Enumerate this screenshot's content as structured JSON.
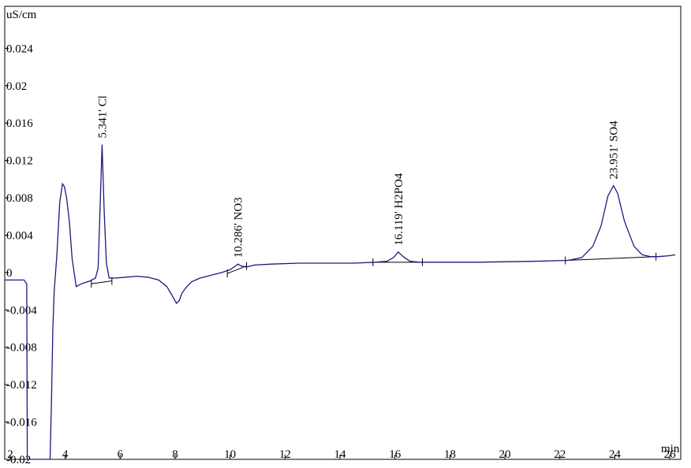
{
  "chart_data": {
    "type": "line",
    "title": "",
    "y_unit": "uS/cm",
    "x_unit": "min",
    "xlim": [
      1.8,
      26.4
    ],
    "ylim": [
      -0.02,
      0.0285
    ],
    "x_ticks": [
      {
        "value": 2,
        "label": "2"
      },
      {
        "value": 4,
        "label": "4"
      },
      {
        "value": 6,
        "label": "6"
      },
      {
        "value": 8,
        "label": "8"
      },
      {
        "value": 10,
        "label": "10"
      },
      {
        "value": 12,
        "label": "12"
      },
      {
        "value": 14,
        "label": "14"
      },
      {
        "value": 16,
        "label": "16"
      },
      {
        "value": 18,
        "label": "18"
      },
      {
        "value": 20,
        "label": "20"
      },
      {
        "value": 22,
        "label": "22"
      },
      {
        "value": 24,
        "label": "24"
      },
      {
        "value": 26,
        "label": "26"
      }
    ],
    "y_ticks": [
      {
        "value": 0.024,
        "label": "0.024"
      },
      {
        "value": 0.02,
        "label": "0.02"
      },
      {
        "value": 0.016,
        "label": "0.016"
      },
      {
        "value": 0.012,
        "label": "0.012"
      },
      {
        "value": 0.008,
        "label": "0.008"
      },
      {
        "value": 0.004,
        "label": "0.004"
      },
      {
        "value": 0,
        "label": "0"
      },
      {
        "value": -0.004,
        "label": "-0.004"
      },
      {
        "value": -0.008,
        "label": "-0.008"
      },
      {
        "value": -0.012,
        "label": "-0.012"
      },
      {
        "value": -0.016,
        "label": "-0.016"
      },
      {
        "value": -0.02,
        "label": "-0.02"
      }
    ],
    "grid": false,
    "line_color": "#1a1a80",
    "baseline_color": "#000000",
    "series": [
      {
        "x": [
          1.8,
          2.2,
          2.5,
          2.6,
          2.62,
          2.7,
          3.3,
          3.45,
          3.5,
          3.55,
          3.6,
          3.7,
          3.8,
          3.9,
          3.97,
          4.05,
          4.15,
          4.25,
          4.4,
          4.6,
          4.9,
          5.1,
          5.2,
          5.27,
          5.341,
          5.42,
          5.5,
          5.6,
          5.8,
          6.2,
          6.6,
          7.0,
          7.4,
          7.7,
          7.9,
          8.05,
          8.15,
          8.25,
          8.4,
          8.6,
          8.9,
          9.3,
          9.7,
          10.0,
          10.2,
          10.286,
          10.4,
          10.6,
          10.9,
          11.5,
          12.5,
          13.5,
          14.5,
          15.3,
          15.7,
          15.95,
          16.119,
          16.3,
          16.55,
          16.9,
          17.5,
          19.0,
          21.0,
          22.3,
          22.8,
          23.2,
          23.5,
          23.75,
          23.951,
          24.1,
          24.35,
          24.7,
          25.0,
          25.3,
          25.6,
          26.0,
          26.2
        ],
        "y": [
          -0.0008,
          -0.0008,
          -0.0008,
          -0.0012,
          -0.02,
          -0.03,
          -0.03,
          -0.02,
          -0.014,
          -0.006,
          -0.002,
          0.002,
          0.0075,
          0.0095,
          0.0092,
          0.008,
          0.0055,
          0.0015,
          -0.0015,
          -0.0012,
          -0.0009,
          -0.0006,
          0.0005,
          0.007,
          0.0137,
          0.0065,
          0.001,
          -0.0006,
          -0.0006,
          -0.0005,
          -0.0004,
          -0.0005,
          -0.0008,
          -0.0015,
          -0.0025,
          -0.0033,
          -0.003,
          -0.0022,
          -0.0016,
          -0.001,
          -0.0006,
          -0.0003,
          0.0,
          0.0003,
          0.0007,
          0.0009,
          0.0007,
          0.0006,
          0.0008,
          0.0009,
          0.001,
          0.001,
          0.001,
          0.0011,
          0.0012,
          0.0016,
          0.0022,
          0.0017,
          0.0012,
          0.0011,
          0.0011,
          0.0011,
          0.0012,
          0.0013,
          0.0016,
          0.0028,
          0.005,
          0.0082,
          0.0093,
          0.0085,
          0.0055,
          0.0028,
          0.0019,
          0.0017,
          0.0017,
          0.0018,
          0.0019
        ]
      }
    ],
    "baselines": [
      {
        "x": [
          4.95,
          5.7
        ],
        "y": [
          -0.0012,
          -0.0009
        ]
      },
      {
        "x": [
          9.9,
          10.6
        ],
        "y": [
          -0.0001,
          0.0007
        ]
      },
      {
        "x": [
          15.2,
          17.0
        ],
        "y": [
          0.0011,
          0.0011
        ]
      },
      {
        "x": [
          22.2,
          25.5
        ],
        "y": [
          0.0013,
          0.0017
        ]
      }
    ],
    "peaks": [
      {
        "x": 5.341,
        "y": 0.0137,
        "label": "5.341' Cl"
      },
      {
        "x": 10.286,
        "y": 0.0009,
        "label": "10.286' NO3"
      },
      {
        "x": 16.119,
        "y": 0.0022,
        "label": "16.119' H2PO4"
      },
      {
        "x": 23.951,
        "y": 0.0093,
        "label": "23.951' SO4"
      }
    ]
  }
}
